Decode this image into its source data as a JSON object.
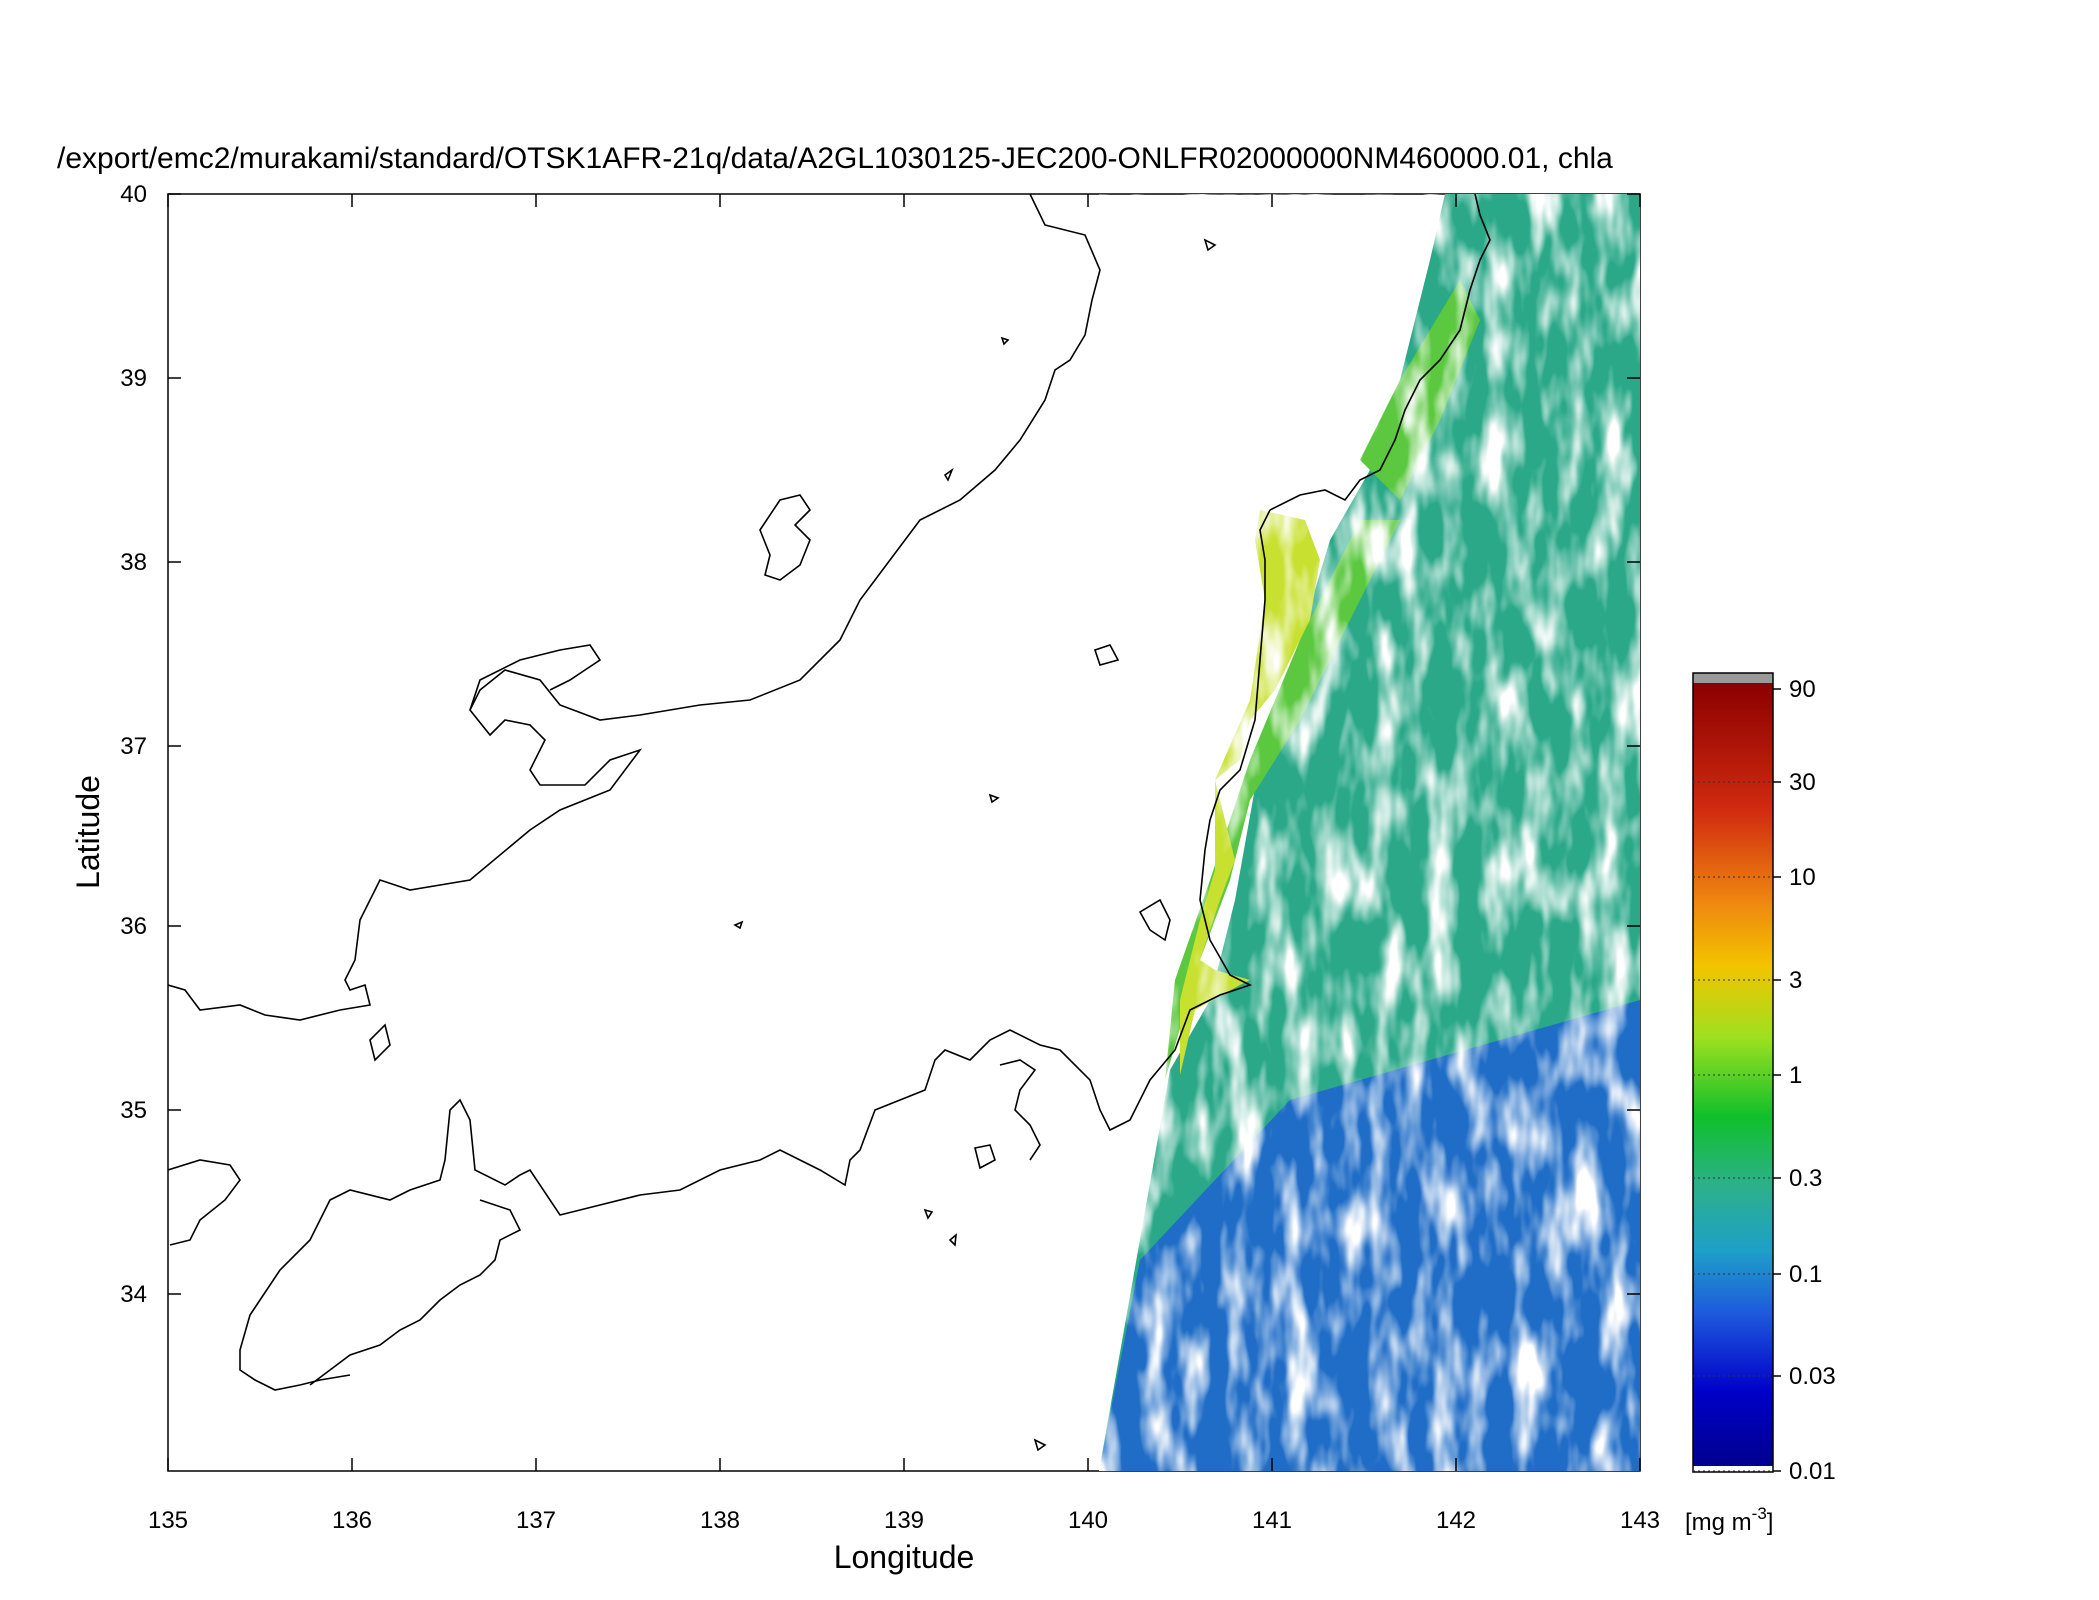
{
  "title": "/export/emc2/murakami/standard/OTSK1AFR-21q/data/A2GL1030125-JEC200-ONLFR02000000NM460000.01, chla",
  "xlabel": "Longitude",
  "ylabel": "Latitude",
  "x_ticks": [
    "135",
    "136",
    "137",
    "138",
    "139",
    "140",
    "141",
    "142",
    "143"
  ],
  "y_ticks": [
    "34",
    "35",
    "36",
    "37",
    "38",
    "39",
    "40"
  ],
  "colorbar": {
    "ticks": [
      "90",
      "30",
      "10",
      "3",
      "1",
      "0.3",
      "0.1",
      "0.03",
      "0.01"
    ],
    "unit_prefix": "[mg m",
    "unit_sup": "-3",
    "unit_suffix": "]",
    "scale": "log",
    "colors": [
      "#00008b",
      "#0000c8",
      "#1e5adc",
      "#1ea0c8",
      "#2cb08c",
      "#10c02a",
      "#9ee020",
      "#f2c400",
      "#f07010",
      "#d02a10",
      "#8b0000"
    ]
  },
  "map": {
    "lon_range": [
      135,
      143
    ],
    "lat_range": [
      33,
      40
    ],
    "swath_colors": {
      "coastal": "#c8e030",
      "nearshore": "#5cc840",
      "offshore": "#2aa888",
      "clear": "#1e5adc"
    }
  }
}
